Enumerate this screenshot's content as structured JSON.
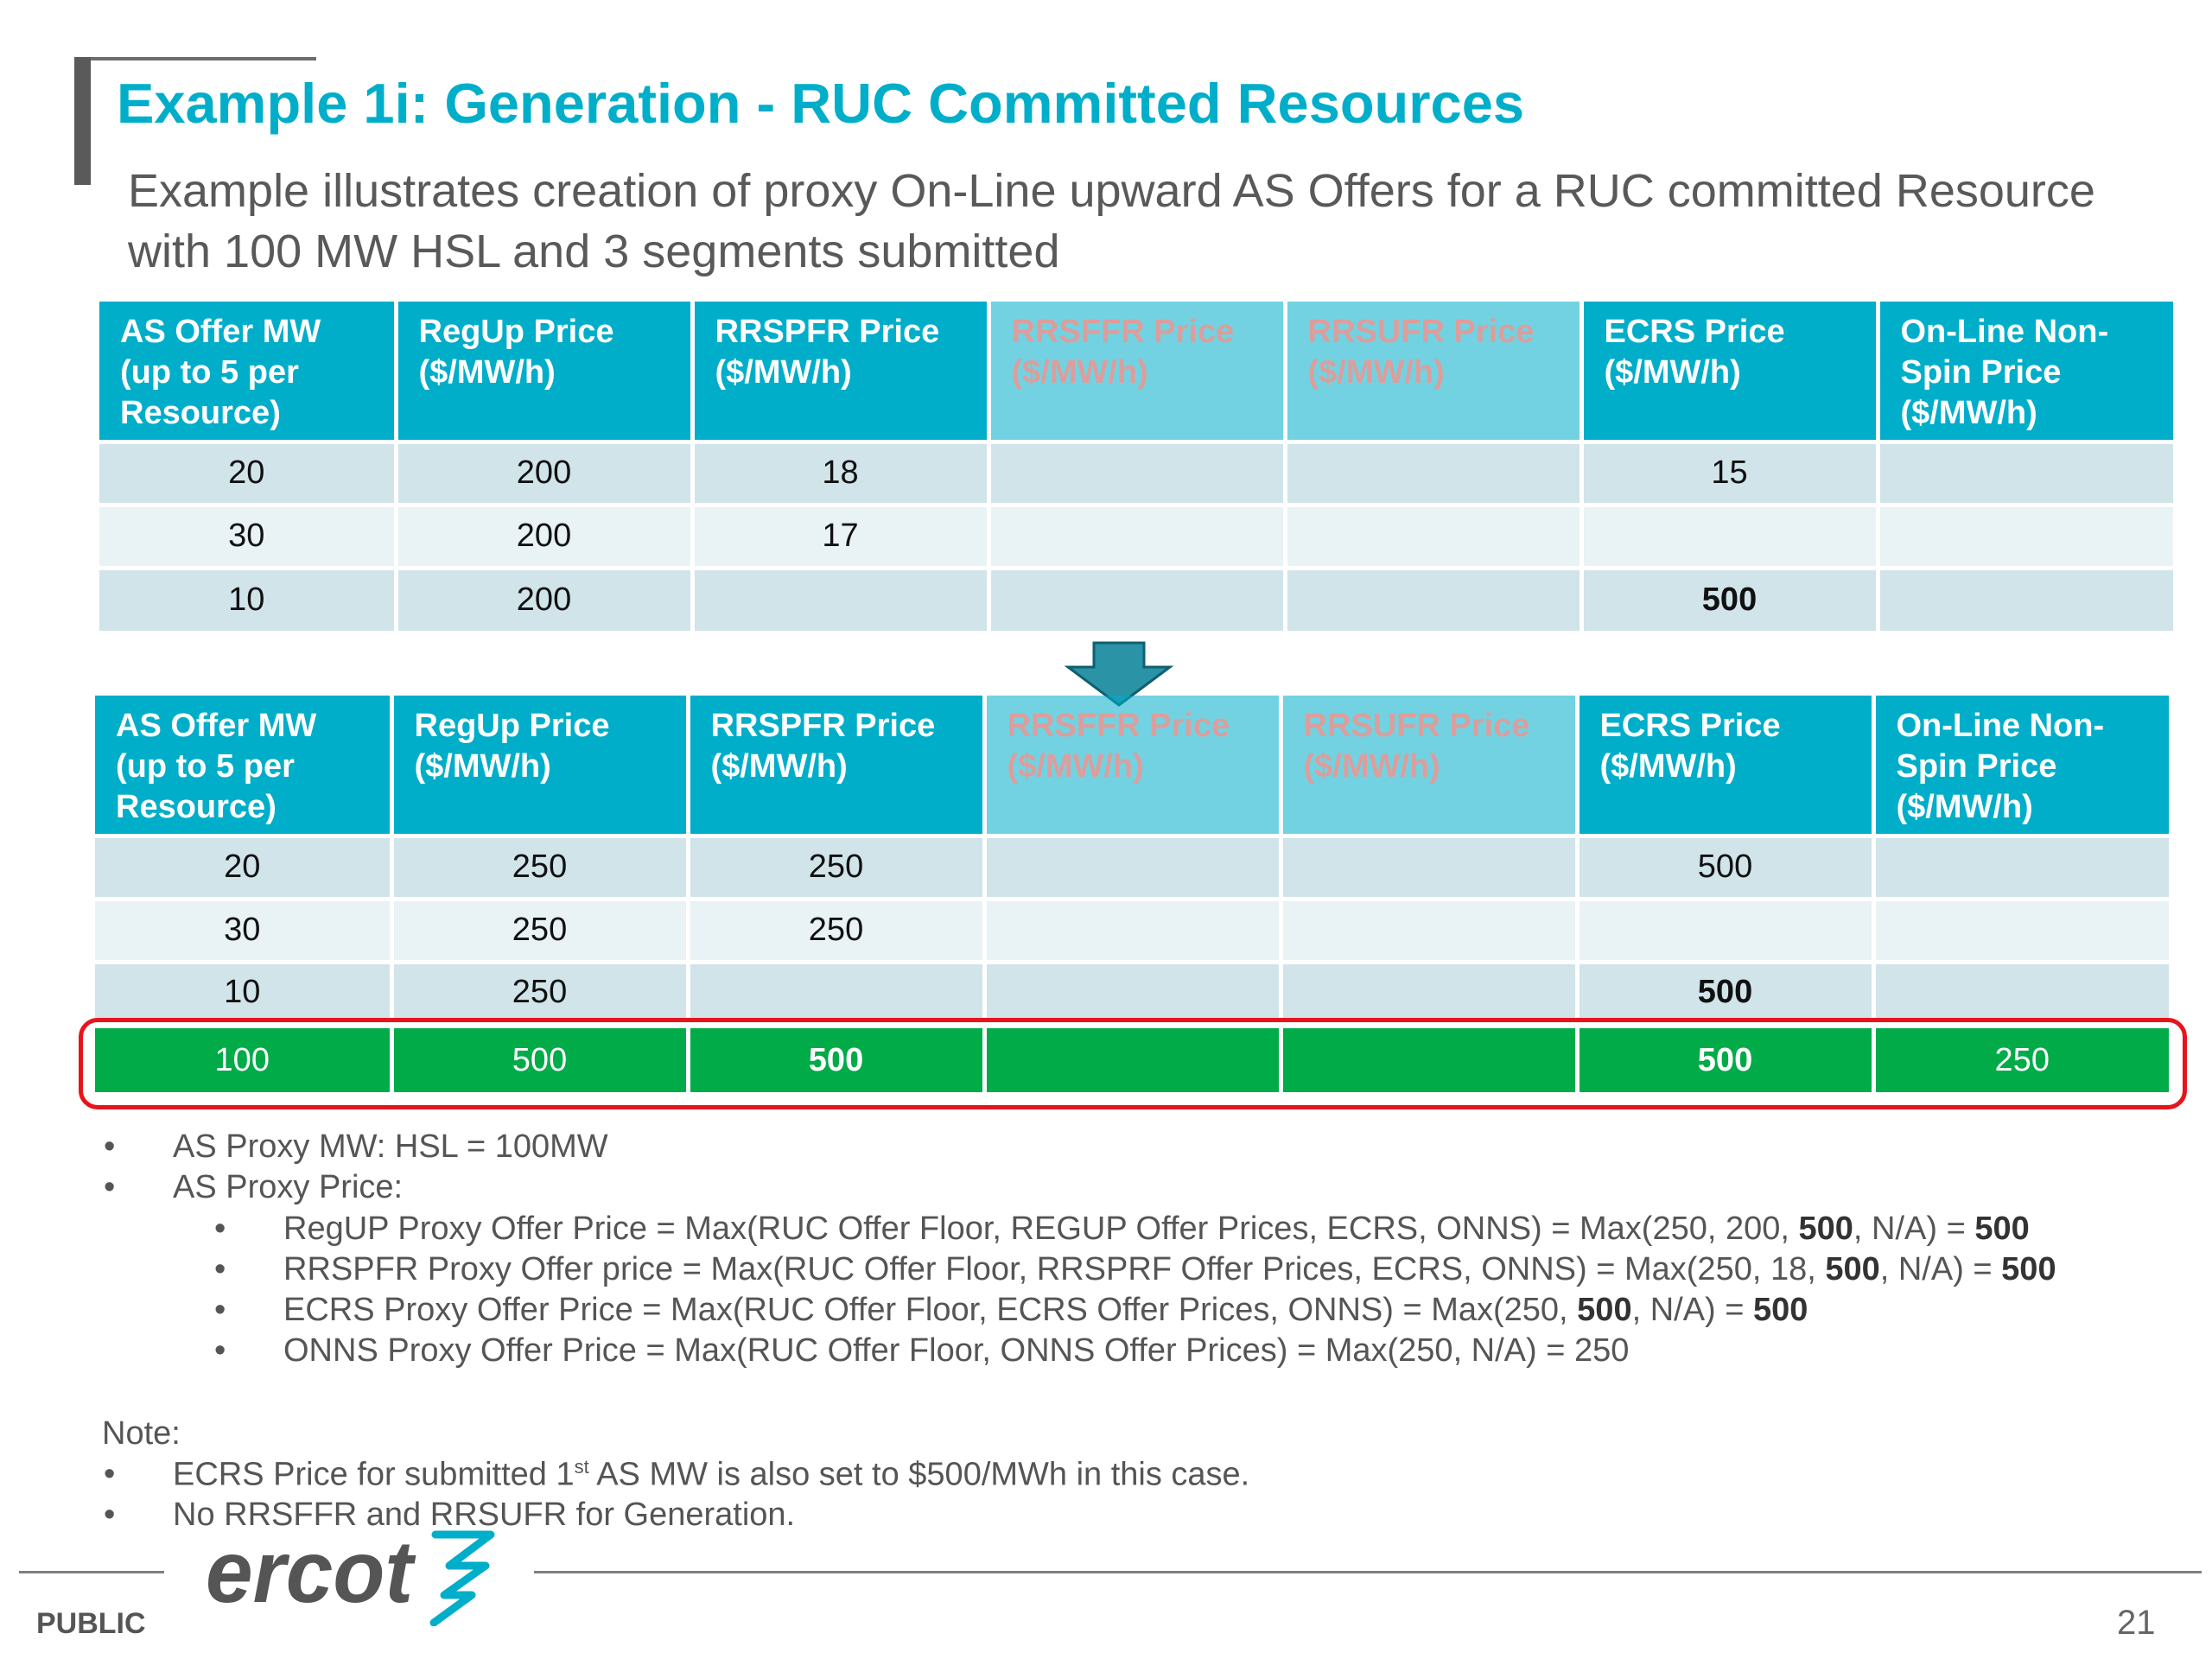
{
  "title": "Example 1i: Generation - RUC Committed Resources",
  "subtitle": "Example illustrates creation of proxy On-Line upward AS Offers for a RUC committed Resource with 100 MW HSL and 3 segments submitted",
  "table_headers": [
    "AS Offer MW (up to 5 per Resource)",
    "RegUp Price ($/MW/h)",
    "RRSPFR Price ($/MW/h)",
    "RRSFFR Price ($/MW/h)",
    "RRSUFR Price ($/MW/h)",
    "ECRS Price ($/MW/h)",
    "On-Line Non-Spin Price ($/MW/h)"
  ],
  "table1_rows": [
    [
      "20",
      "200",
      "18",
      "",
      "",
      "15",
      ""
    ],
    [
      "30",
      "200",
      "17",
      "",
      "",
      "",
      ""
    ],
    [
      "10",
      "200",
      "",
      "",
      "",
      "500",
      ""
    ]
  ],
  "table2_rows": [
    [
      "20",
      "250",
      "250",
      "",
      "",
      "500",
      ""
    ],
    [
      "30",
      "250",
      "250",
      "",
      "",
      "",
      ""
    ],
    [
      "10",
      "250",
      "",
      "",
      "",
      "500",
      ""
    ]
  ],
  "proxy_row": [
    "100",
    "500",
    "500",
    "",
    "",
    "500",
    "250"
  ],
  "bullets": {
    "proxy_mw": "AS Proxy MW: HSL = 100MW",
    "proxy_price": "AS Proxy Price:",
    "regup": {
      "a": "RegUP Proxy Offer Price = Max(RUC Offer Floor, REGUP Offer Prices, ECRS, ONNS) = Max(250, 200, ",
      "b": "500",
      "c": ", N/A) = ",
      "d": "500"
    },
    "rrspfr": {
      "a": "RRSPFR Proxy Offer price = Max(RUC Offer Floor, RRSPRF Offer Prices, ECRS, ONNS) = Max(250, 18, ",
      "b": "500",
      "c": ", N/A) = ",
      "d": "500"
    },
    "ecrs": {
      "a": "ECRS Proxy Offer Price = Max(RUC Offer Floor, ECRS Offer Prices, ONNS) = Max(250, ",
      "b": "500",
      "c": ",  N/A) = ",
      "d": "500"
    },
    "onns": "ONNS Proxy Offer Price = Max(RUC Offer Floor, ONNS Offer Prices) = Max(250, N/A) = 250"
  },
  "note": {
    "label": "Note:",
    "line1_a": "ECRS Price for submitted 1",
    "line1_sup": "st",
    "line1_b": " AS MW is also set to $500/MWh in this case.",
    "line2": "No RRSFFR and RRSUFR for Generation."
  },
  "footer": {
    "logo_text": "ercot",
    "public": "PUBLIC",
    "page": "21"
  },
  "colors": {
    "title": "#00aeca",
    "header_bg": "#00aeca",
    "row_odd": "#d0e4ea",
    "row_even": "#e9f2f4",
    "proxy_row": "#00ab48",
    "highlight": "#e8141b",
    "arrow": "#2a93a6"
  }
}
